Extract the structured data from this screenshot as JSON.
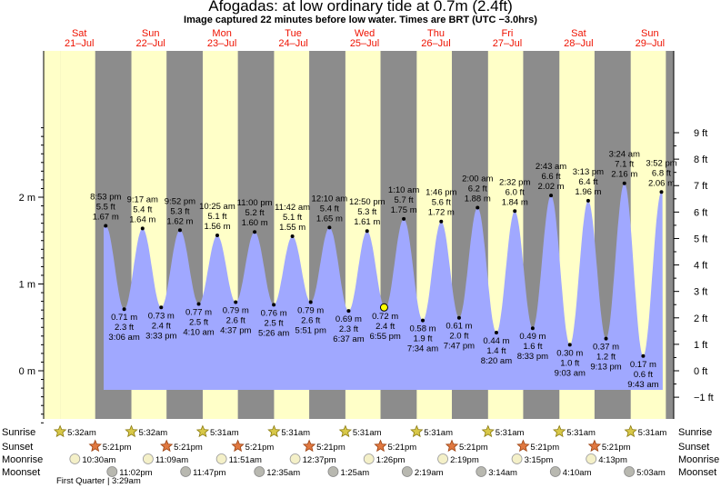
{
  "title": "Afogadas: at low  ordinary tide at 0.7m (2.4ft)",
  "subtitle": "Image captured 22 minutes before low water. Times are BRT (UTC −3.0hrs)",
  "chart_data": {
    "type": "area",
    "left_axis": {
      "unit": "m",
      "ticks": [
        {
          "v": 0,
          "label": "0 m"
        },
        {
          "v": 1,
          "label": "1 m"
        },
        {
          "v": 2,
          "label": "2 m"
        }
      ]
    },
    "right_axis": {
      "unit": "ft",
      "ticks": [
        {
          "v": -1,
          "label": "−1 ft"
        },
        {
          "v": 0,
          "label": "0 ft"
        },
        {
          "v": 1,
          "label": "1 ft"
        },
        {
          "v": 2,
          "label": "2 ft"
        },
        {
          "v": 3,
          "label": "3 ft"
        },
        {
          "v": 4,
          "label": "4 ft"
        },
        {
          "v": 5,
          "label": "5 ft"
        },
        {
          "v": 6,
          "label": "6 ft"
        },
        {
          "v": 7,
          "label": "7 ft"
        },
        {
          "v": 8,
          "label": "8 ft"
        },
        {
          "v": 9,
          "label": "9 ft"
        }
      ]
    },
    "ylim_m": [
      -0.63,
      2.91
    ],
    "days": [
      {
        "d": "Sat",
        "date": "21–Jul"
      },
      {
        "d": "Sun",
        "date": "22–Jul"
      },
      {
        "d": "Mon",
        "date": "23–Jul"
      },
      {
        "d": "Tue",
        "date": "24–Jul"
      },
      {
        "d": "Wed",
        "date": "25–Jul"
      },
      {
        "d": "Thu",
        "date": "26–Jul"
      },
      {
        "d": "Fri",
        "date": "27–Jul"
      },
      {
        "d": "Sat",
        "date": "28–Jul"
      },
      {
        "d": "Sun",
        "date": "29–Jul"
      }
    ],
    "tides": [
      {
        "type": "high",
        "time": "8:53 pm",
        "t": 20.88,
        "m": 1.67,
        "ft": "5.5 ft",
        "ml": "1.67 m"
      },
      {
        "type": "low",
        "time": "3:06 am",
        "t": 27.1,
        "m": 0.71,
        "ft": "2.3 ft",
        "ml": "0.71 m"
      },
      {
        "type": "high",
        "time": "9:17 am",
        "t": 33.28,
        "m": 1.64,
        "ft": "5.4 ft",
        "ml": "1.64 m"
      },
      {
        "type": "low",
        "time": "3:33 pm",
        "t": 39.55,
        "m": 0.73,
        "ft": "2.4 ft",
        "ml": "0.73 m"
      },
      {
        "type": "high",
        "time": "9:52 pm",
        "t": 45.87,
        "m": 1.62,
        "ft": "5.3 ft",
        "ml": "1.62 m"
      },
      {
        "type": "low",
        "time": "4:10 am",
        "t": 52.17,
        "m": 0.77,
        "ft": "2.5 ft",
        "ml": "0.77 m"
      },
      {
        "type": "high",
        "time": "10:25 am",
        "t": 58.42,
        "m": 1.56,
        "ft": "5.1 ft",
        "ml": "1.56 m"
      },
      {
        "type": "low",
        "time": "4:37 pm",
        "t": 64.62,
        "m": 0.79,
        "ft": "2.6 ft",
        "ml": "0.79 m"
      },
      {
        "type": "high",
        "time": "11:00 pm",
        "t": 71.0,
        "m": 1.6,
        "ft": "5.2 ft",
        "ml": "1.60 m"
      },
      {
        "type": "low",
        "time": "5:26 am",
        "t": 77.43,
        "m": 0.76,
        "ft": "2.5 ft",
        "ml": "0.76 m"
      },
      {
        "type": "high",
        "time": "11:42 am",
        "t": 83.7,
        "m": 1.55,
        "ft": "5.1 ft",
        "ml": "1.55 m"
      },
      {
        "type": "low",
        "time": "5:51 pm",
        "t": 89.85,
        "m": 0.79,
        "ft": "2.6 ft",
        "ml": "0.79 m"
      },
      {
        "type": "high",
        "time": "12:10 am",
        "t": 96.17,
        "m": 1.65,
        "ft": "5.4 ft",
        "ml": "1.65 m"
      },
      {
        "type": "low",
        "time": "6:37 am",
        "t": 102.62,
        "m": 0.69,
        "ft": "2.3 ft",
        "ml": "0.69 m"
      },
      {
        "type": "high",
        "time": "12:50 pm",
        "t": 108.83,
        "m": 1.61,
        "ft": "5.3 ft",
        "ml": "1.61 m"
      },
      {
        "type": "low",
        "time": "6:55 pm",
        "t": 114.92,
        "m": 0.72,
        "ft": "2.4 ft",
        "ml": "0.72 m"
      },
      {
        "type": "high",
        "time": "1:10 am",
        "t": 121.17,
        "m": 1.75,
        "ft": "5.7 ft",
        "ml": "1.75 m"
      },
      {
        "type": "low",
        "time": "7:34 am",
        "t": 127.57,
        "m": 0.58,
        "ft": "1.9 ft",
        "ml": "0.58 m"
      },
      {
        "type": "high",
        "time": "1:46 pm",
        "t": 133.77,
        "m": 1.72,
        "ft": "5.6 ft",
        "ml": "1.72 m"
      },
      {
        "type": "low",
        "time": "7:47 pm",
        "t": 139.78,
        "m": 0.61,
        "ft": "2.0 ft",
        "ml": "0.61 m"
      },
      {
        "type": "high",
        "time": "2:00 am",
        "t": 146.0,
        "m": 1.88,
        "ft": "6.2 ft",
        "ml": "1.88 m"
      },
      {
        "type": "low",
        "time": "8:20 am",
        "t": 152.33,
        "m": 0.44,
        "ft": "1.4 ft",
        "ml": "0.44 m"
      },
      {
        "type": "high",
        "time": "2:32 pm",
        "t": 158.53,
        "m": 1.84,
        "ft": "6.0 ft",
        "ml": "1.84 m"
      },
      {
        "type": "low",
        "time": "8:33 pm",
        "t": 164.55,
        "m": 0.49,
        "ft": "1.6 ft",
        "ml": "0.49 m"
      },
      {
        "type": "high",
        "time": "2:43 am",
        "t": 170.72,
        "m": 2.02,
        "ft": "6.6 ft",
        "ml": "2.02 m"
      },
      {
        "type": "low",
        "time": "9:03 am",
        "t": 177.05,
        "m": 0.3,
        "ft": "1.0 ft",
        "ml": "0.30 m"
      },
      {
        "type": "high",
        "time": "3:13 pm",
        "t": 183.22,
        "m": 1.96,
        "ft": "6.4 ft",
        "ml": "1.96 m"
      },
      {
        "type": "low",
        "time": "9:13 pm",
        "t": 189.22,
        "m": 0.37,
        "ft": "1.2 ft",
        "ml": "0.37 m"
      },
      {
        "type": "high",
        "time": "3:24 am",
        "t": 195.4,
        "m": 2.16,
        "ft": "7.1 ft",
        "ml": "2.16 m"
      },
      {
        "type": "low",
        "time": "9:43 am",
        "t": 201.72,
        "m": 0.17,
        "ft": "0.6 ft",
        "ml": "0.17 m"
      },
      {
        "type": "high",
        "time": "3:52 pm",
        "t": 207.87,
        "m": 2.06,
        "ft": "6.8 ft",
        "ml": "2.06 m"
      }
    ],
    "current": {
      "time": "6:33 pm",
      "t": 114.55,
      "m": 0.73
    }
  },
  "rows": {
    "sunrise_label": "Sunrise",
    "sunset_label": "Sunset",
    "moonrise_label": "Moonrise",
    "moonset_label": "Moonset",
    "sunrise": [
      {
        "t": 5.53,
        "text": "5:32am"
      },
      {
        "t": 29.53,
        "text": "5:32am"
      },
      {
        "t": 53.52,
        "text": "5:31am"
      },
      {
        "t": 77.52,
        "text": "5:31am"
      },
      {
        "t": 101.52,
        "text": "5:31am"
      },
      {
        "t": 125.52,
        "text": "5:31am"
      },
      {
        "t": 149.52,
        "text": "5:31am"
      },
      {
        "t": 173.52,
        "text": "5:31am"
      },
      {
        "t": 197.52,
        "text": "5:31am"
      }
    ],
    "sunset": [
      {
        "t": 17.35,
        "text": "5:21pm"
      },
      {
        "t": 41.35,
        "text": "5:21pm"
      },
      {
        "t": 65.35,
        "text": "5:21pm"
      },
      {
        "t": 89.35,
        "text": "5:21pm"
      },
      {
        "t": 113.35,
        "text": "5:21pm"
      },
      {
        "t": 137.35,
        "text": "5:21pm"
      },
      {
        "t": 161.35,
        "text": "5:21pm"
      },
      {
        "t": 185.35,
        "text": "5:21pm"
      }
    ],
    "moonrise": [
      {
        "t": 10.5,
        "text": "10:30am"
      },
      {
        "t": 35.15,
        "text": "11:09am"
      },
      {
        "t": 59.85,
        "text": "11:51am"
      },
      {
        "t": 84.62,
        "text": "12:37pm"
      },
      {
        "t": 109.43,
        "text": "1:26pm"
      },
      {
        "t": 134.32,
        "text": "2:19pm"
      },
      {
        "t": 159.25,
        "text": "3:15pm"
      },
      {
        "t": 184.22,
        "text": "4:13pm"
      }
    ],
    "moonset": [
      {
        "t": 23.03,
        "text": "11:02pm"
      },
      {
        "t": 47.78,
        "text": "11:47pm"
      },
      {
        "t": 72.58,
        "text": "12:35am"
      },
      {
        "t": 97.42,
        "text": "1:25am"
      },
      {
        "t": 122.32,
        "text": "2:19am"
      },
      {
        "t": 147.23,
        "text": "3:14am"
      },
      {
        "t": 172.17,
        "text": "4:10am"
      },
      {
        "t": 197.05,
        "text": "5:03am"
      }
    ],
    "moon_phase": "First Quarter | 3:29am",
    "colors": {
      "day": "#ffffc8",
      "night": "#8c8c8c",
      "water": "#a0a8ff",
      "high_marker": "#000000",
      "current": "#ffff00",
      "day_label": "#ee1100"
    }
  }
}
